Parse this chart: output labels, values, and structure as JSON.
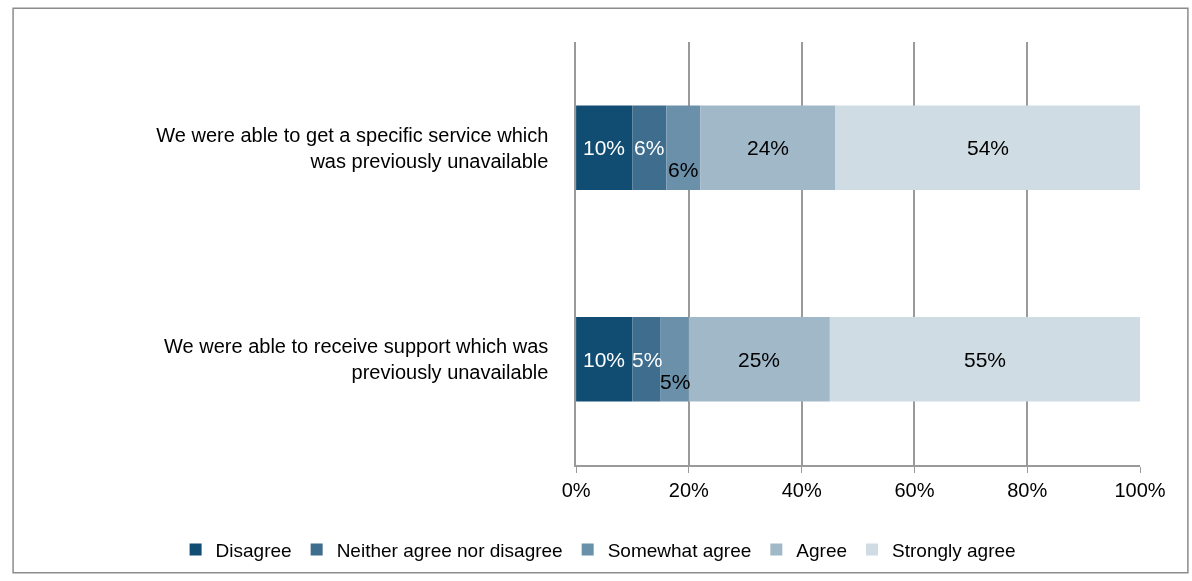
{
  "chart_data": {
    "type": "bar",
    "orientation": "horizontal",
    "stacked": true,
    "categories": [
      "We were able to get a specific service which was previously unavailable",
      "We were able to receive support which was previously unavailable"
    ],
    "series": [
      {
        "name": "Disagree",
        "color": "#114d72",
        "values": [
          10,
          10
        ],
        "value_labels": [
          "10%",
          "10%"
        ]
      },
      {
        "name": "Neither agree nor disagree",
        "color": "#3e6d8e",
        "values": [
          6,
          5
        ],
        "value_labels": [
          "6%",
          "5%"
        ]
      },
      {
        "name": "Somewhat agree",
        "color": "#6b90aa",
        "values": [
          6,
          5
        ],
        "value_labels": [
          "6%",
          "5%"
        ]
      },
      {
        "name": "Agree",
        "color": "#a1b8c9",
        "values": [
          24,
          25
        ],
        "value_labels": [
          "24%",
          "25%"
        ]
      },
      {
        "name": "Strongly agree",
        "color": "#cfdce4",
        "values": [
          54,
          55
        ],
        "value_labels": [
          "54%",
          "55%"
        ]
      }
    ],
    "xlim": [
      0,
      100
    ],
    "xticks": [
      {
        "value": 0,
        "label": "0%"
      },
      {
        "value": 20,
        "label": "20%"
      },
      {
        "value": 40,
        "label": "40%"
      },
      {
        "value": 60,
        "label": "60%"
      },
      {
        "value": 80,
        "label": "80%"
      },
      {
        "value": 100,
        "label": "100%"
      }
    ],
    "grid": "x",
    "legend": "bottom"
  }
}
